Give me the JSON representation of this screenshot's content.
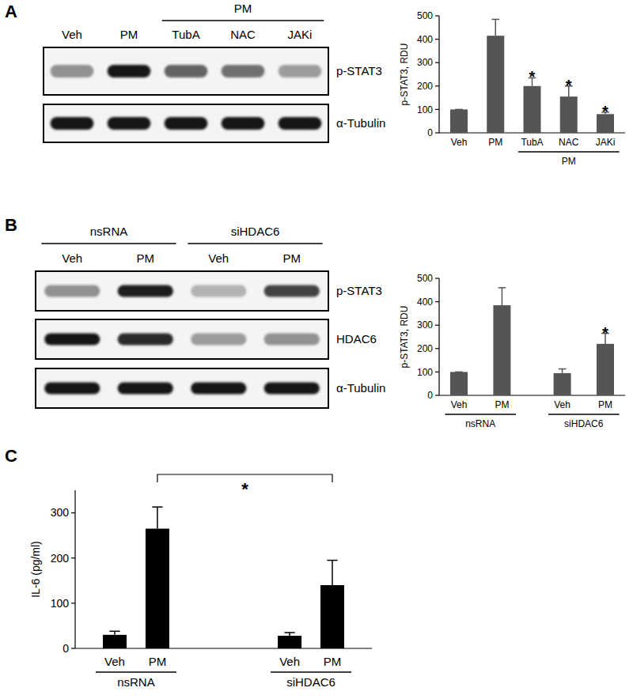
{
  "chart_data": [
    {
      "type": "bar",
      "y_label": "p-STAT3, RDU",
      "categories": [
        "Veh",
        "PM",
        "TubA",
        "NAC",
        "JAKi"
      ],
      "group_labels": [
        null,
        null,
        "PM",
        "PM",
        "PM"
      ],
      "values": [
        100,
        415,
        200,
        155,
        80
      ],
      "errors": [
        0,
        70,
        35,
        45,
        8
      ],
      "significance": [
        null,
        null,
        "*",
        "*",
        "*"
      ],
      "color": "#555555",
      "ylim": [
        0,
        500
      ],
      "yticks": [
        0,
        100,
        200,
        300,
        400,
        500
      ]
    },
    {
      "type": "bar",
      "y_label": "p-STAT3, RDU",
      "categories": [
        "Veh",
        "PM",
        "Veh",
        "PM"
      ],
      "group_labels": [
        "nsRNA",
        "nsRNA",
        "siHDAC6",
        "siHDAC6"
      ],
      "values": [
        100,
        385,
        95,
        220
      ],
      "errors": [
        0,
        75,
        18,
        45
      ],
      "significance": [
        null,
        null,
        null,
        "*"
      ],
      "color": "#555555",
      "ylim": [
        0,
        500
      ],
      "yticks": [
        0,
        100,
        200,
        300,
        400,
        500
      ]
    },
    {
      "type": "bar",
      "y_label": "IL-6 (pg/ml)",
      "categories": [
        "Veh",
        "PM",
        "Veh",
        "PM"
      ],
      "group_labels": [
        "nsRNA",
        "nsRNA",
        "siHDAC6",
        "siHDAC6"
      ],
      "values": [
        30,
        265,
        28,
        140
      ],
      "errors": [
        8,
        48,
        7,
        55
      ],
      "comparisons": [
        {
          "from": 1,
          "to": 3,
          "label": "*"
        }
      ],
      "color": "#000000",
      "ylim": [
        0,
        350
      ],
      "yticks": [
        0,
        100,
        200,
        300
      ]
    }
  ],
  "figure": {
    "panel_labels": [
      "A",
      "B",
      "C"
    ],
    "blots": [
      {
        "lanes": [
          "Veh",
          "PM",
          "TubA",
          "NAC",
          "JAKi"
        ],
        "lane_groups": [
          null,
          null,
          "PM",
          "PM",
          "PM"
        ],
        "rows": [
          {
            "label": "p-STAT3",
            "intensity": [
              0.4,
              0.95,
              0.6,
              0.55,
              0.35
            ]
          },
          {
            "label": "α-Tubulin",
            "intensity": [
              0.95,
              0.95,
              0.95,
              0.95,
              0.95
            ]
          }
        ]
      },
      {
        "lanes": [
          "Veh",
          "PM",
          "Veh",
          "PM"
        ],
        "lane_groups": [
          "nsRNA",
          "nsRNA",
          "siHDAC6",
          "siHDAC6"
        ],
        "rows": [
          {
            "label": "p-STAT3",
            "intensity": [
              0.4,
              0.92,
              0.25,
              0.75
            ]
          },
          {
            "label": "HDAC6",
            "intensity": [
              0.95,
              0.85,
              0.35,
              0.4
            ]
          },
          {
            "label": "α-Tubulin",
            "intensity": [
              0.95,
              0.95,
              0.95,
              0.95
            ]
          }
        ]
      }
    ]
  }
}
